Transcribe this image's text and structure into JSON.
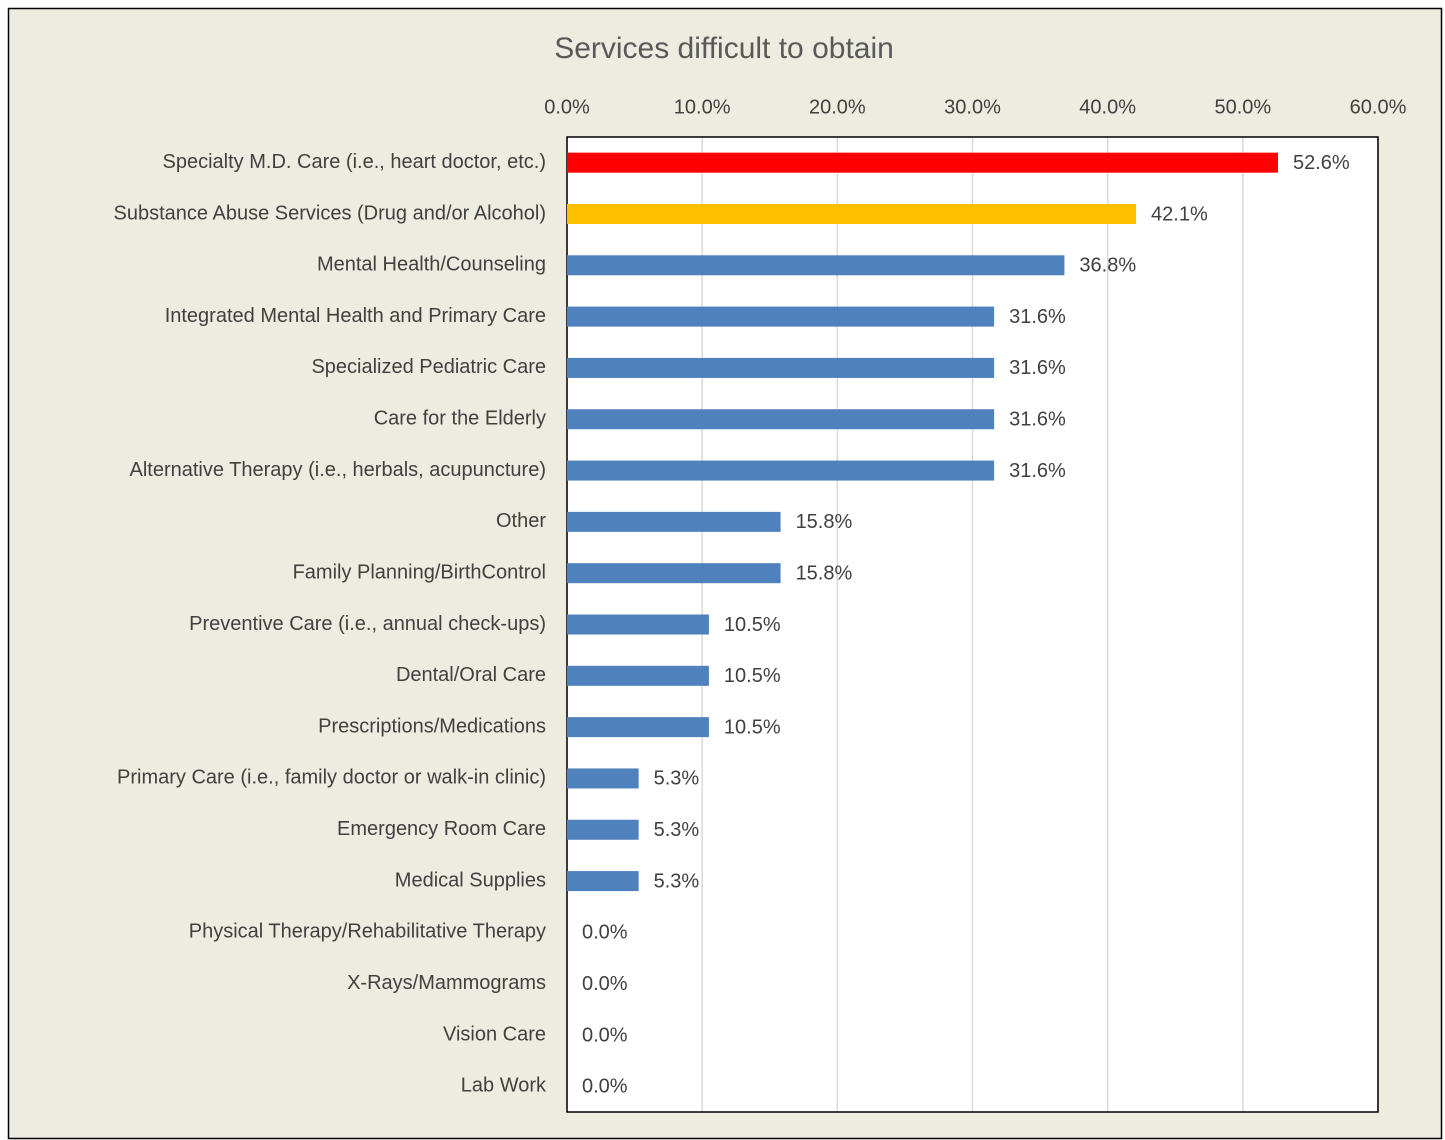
{
  "chart_data": {
    "type": "bar",
    "orientation": "horizontal",
    "title": "Services difficult to obtain",
    "categories": [
      "Specialty M.D. Care (i.e., heart doctor, etc.)",
      "Substance Abuse Services (Drug and/or Alcohol)",
      "Mental Health/Counseling",
      "Integrated Mental Health and Primary Care",
      "Specialized Pediatric Care",
      "Care for the Elderly",
      "Alternative Therapy (i.e., herbals, acupuncture)",
      "Other",
      "Family Planning/BirthControl",
      "Preventive Care (i.e., annual check-ups)",
      "Dental/Oral Care",
      "Prescriptions/Medications",
      "Primary Care (i.e., family doctor or walk-in clinic)",
      "Emergency Room Care",
      "Medical Supplies",
      "Physical Therapy/Rehabilitative Therapy",
      "X-Rays/Mammograms",
      "Vision Care",
      "Lab Work"
    ],
    "values": [
      52.6,
      42.1,
      36.8,
      31.6,
      31.6,
      31.6,
      31.6,
      15.8,
      15.8,
      10.5,
      10.5,
      10.5,
      5.3,
      5.3,
      5.3,
      0,
      0,
      0,
      0
    ],
    "value_labels": [
      "52.6%",
      "42.1%",
      "36.8%",
      "31.6%",
      "31.6%",
      "31.6%",
      "31.6%",
      "15.8%",
      "15.8%",
      "10.5%",
      "10.5%",
      "10.5%",
      "5.3%",
      "5.3%",
      "5.3%",
      "0.0%",
      "0.0%",
      "0.0%",
      "0.0%"
    ],
    "colors": [
      "#ff0000",
      "#ffc000",
      "#4f81bd",
      "#4f81bd",
      "#4f81bd",
      "#4f81bd",
      "#4f81bd",
      "#4f81bd",
      "#4f81bd",
      "#4f81bd",
      "#4f81bd",
      "#4f81bd",
      "#4f81bd",
      "#4f81bd",
      "#4f81bd",
      "#4f81bd",
      "#4f81bd",
      "#4f81bd",
      "#4f81bd"
    ],
    "xlim": [
      0,
      60
    ],
    "xticks": [
      {
        "value": 0,
        "label": "0.0%"
      },
      {
        "value": 10,
        "label": "10.0%"
      },
      {
        "value": 20,
        "label": "20.0%"
      },
      {
        "value": 30,
        "label": "30.0%"
      },
      {
        "value": 40,
        "label": "40.0%"
      },
      {
        "value": 50,
        "label": "50.0%"
      },
      {
        "value": 60,
        "label": "60.0%"
      }
    ],
    "grid": true
  }
}
